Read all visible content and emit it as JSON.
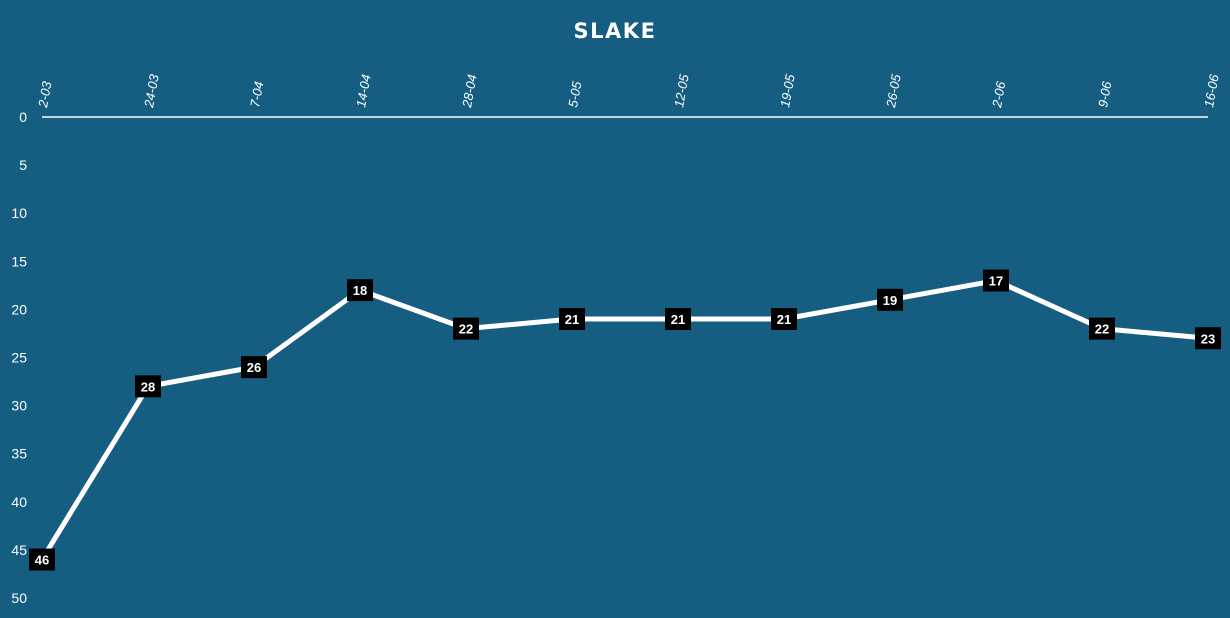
{
  "chart_data": {
    "type": "line",
    "title": "SLAKE",
    "categories": [
      "2-03",
      "24-03",
      "7-04",
      "14-04",
      "28-04",
      "5-05",
      "12-05",
      "19-05",
      "26-05",
      "2-06",
      "9-06",
      "16-06"
    ],
    "series": [
      {
        "values": [
          46,
          28,
          26,
          18,
          22,
          21,
          21,
          21,
          19,
          17,
          22,
          23
        ]
      }
    ],
    "ylim": [
      0,
      50
    ],
    "y_ticks": [
      0,
      5,
      10,
      15,
      20,
      25,
      30,
      35,
      40,
      45,
      50
    ],
    "y_inverted": true,
    "x_axis_position": "top",
    "grid": "vertical",
    "data_labels": true
  },
  "colors": {
    "background": "#155e82",
    "line": "#ffffff",
    "label_box": "#000000",
    "text": "#ffffff"
  }
}
